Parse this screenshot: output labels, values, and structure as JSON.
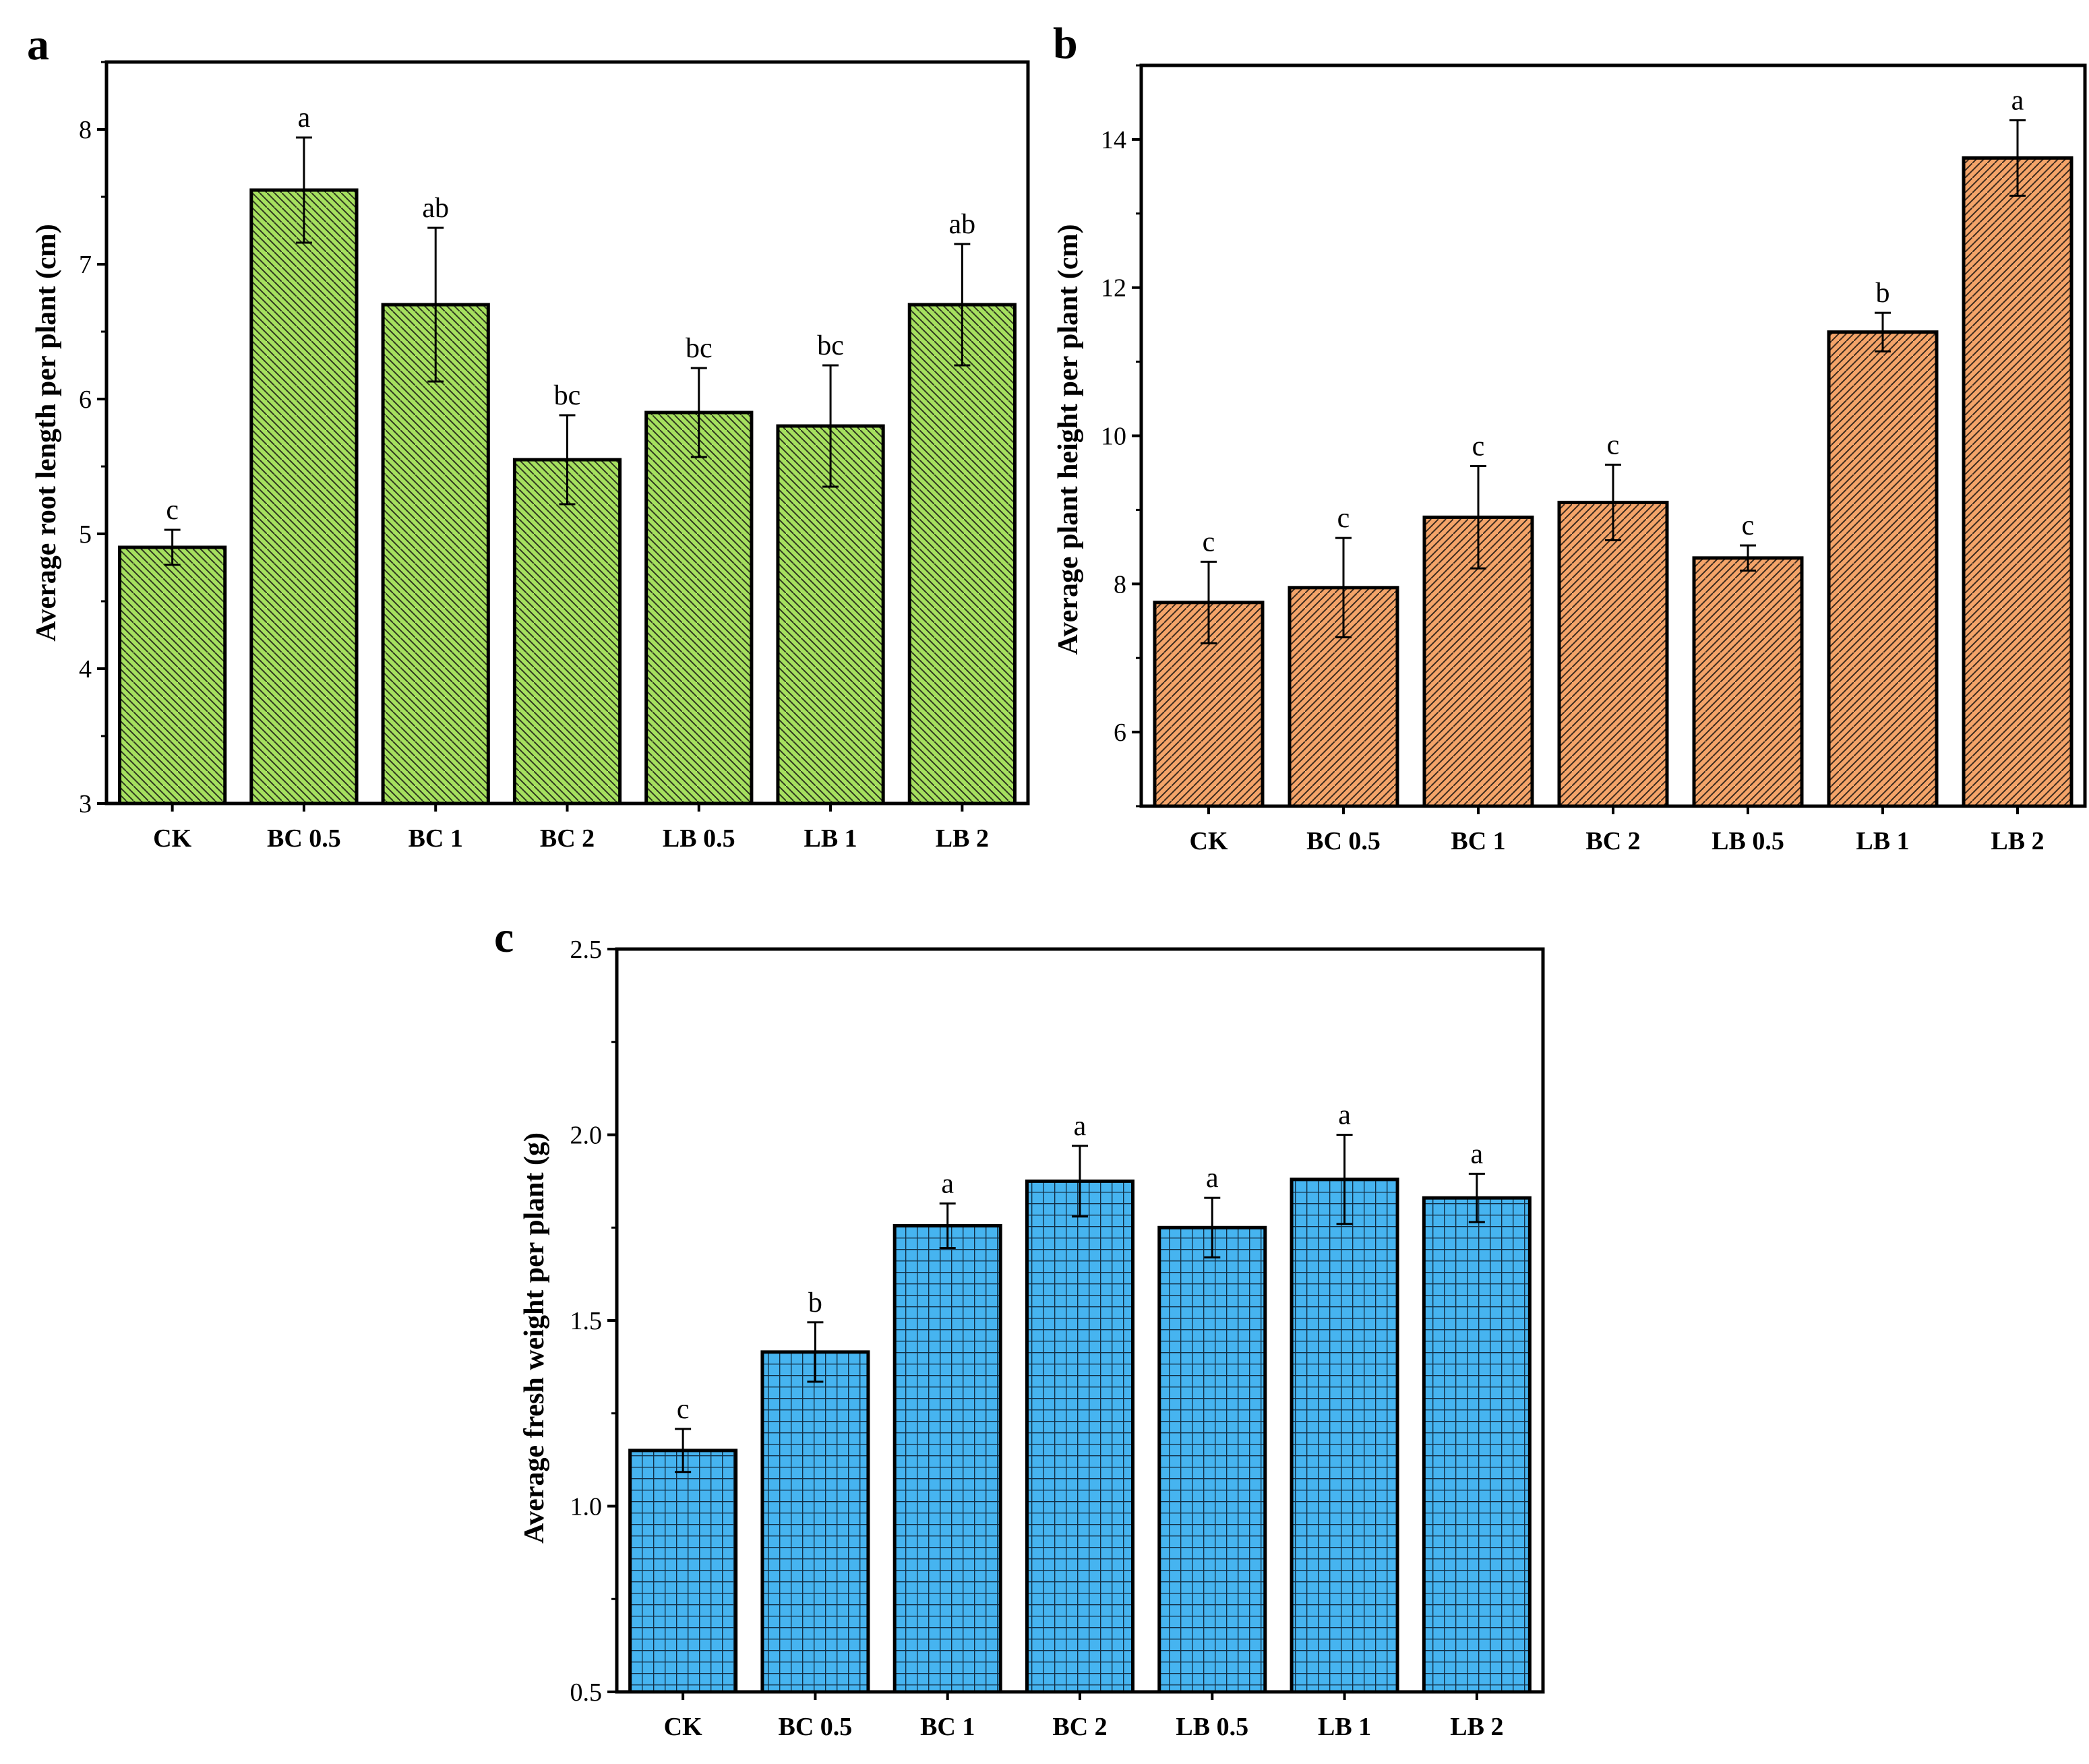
{
  "chart_data": [
    {
      "type": "bar",
      "panel": "a",
      "title": "",
      "xlabel": "",
      "ylabel": "Average root length per plant (cm)",
      "categories": [
        "CK",
        "BC 0.5",
        "BC 1",
        "BC 2",
        "LB 0.5",
        "LB 1",
        "LB 2"
      ],
      "values": [
        4.9,
        7.55,
        6.7,
        5.55,
        5.9,
        5.8,
        6.7
      ],
      "errors": [
        0.13,
        0.39,
        0.57,
        0.33,
        0.33,
        0.45,
        0.45
      ],
      "significance": [
        "c",
        "a",
        "ab",
        "bc",
        "bc",
        "bc",
        "ab"
      ],
      "ylim": [
        3,
        8.5
      ],
      "yticks": [
        "3",
        "4",
        "5",
        "6",
        "7",
        "8"
      ],
      "bar_color": "#a6e05f",
      "hatch": "backslash",
      "grid": false
    },
    {
      "type": "bar",
      "panel": "b",
      "title": "",
      "xlabel": "",
      "ylabel": "Average plant height per plant (cm)",
      "categories": [
        "CK",
        "BC 0.5",
        "BC 1",
        "BC 2",
        "LB 0.5",
        "LB 1",
        "LB 2"
      ],
      "values": [
        7.75,
        7.95,
        8.9,
        9.1,
        8.35,
        11.4,
        13.75
      ],
      "errors": [
        0.55,
        0.67,
        0.69,
        0.51,
        0.17,
        0.26,
        0.51
      ],
      "significance": [
        "c",
        "c",
        "c",
        "c",
        "c",
        "b",
        "a"
      ],
      "ylim": [
        5,
        15
      ],
      "yticks": [
        "6",
        "8",
        "10",
        "12",
        "14"
      ],
      "bar_color": "#f4a469",
      "hatch": "slash",
      "grid": false
    },
    {
      "type": "bar",
      "panel": "c",
      "title": "",
      "xlabel": "",
      "ylabel": "Average fresh weight per plant (g)",
      "categories": [
        "CK",
        "BC 0.5",
        "BC 1",
        "BC 2",
        "LB 0.5",
        "LB 1",
        "LB 2"
      ],
      "values": [
        1.15,
        1.415,
        1.755,
        1.875,
        1.75,
        1.88,
        1.83
      ],
      "errors": [
        0.058,
        0.08,
        0.06,
        0.095,
        0.08,
        0.12,
        0.065
      ],
      "significance": [
        "c",
        "b",
        "a",
        "a",
        "a",
        "a",
        "a"
      ],
      "ylim": [
        0.5,
        2.5
      ],
      "yticks": [
        "0.5",
        "1.0",
        "1.5",
        "2.0",
        "2.5"
      ],
      "bar_color": "#46b4f0",
      "hatch": "grid",
      "grid": false
    }
  ]
}
